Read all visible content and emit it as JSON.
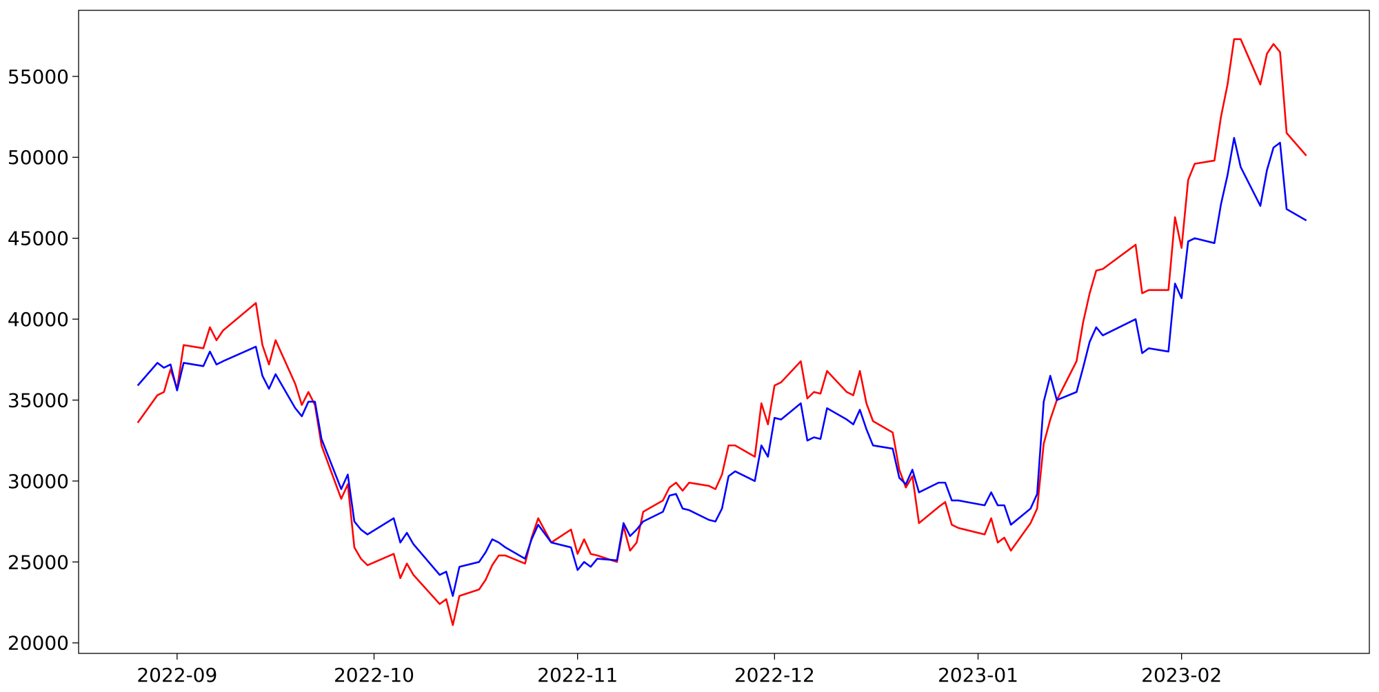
{
  "chart_data": {
    "type": "line",
    "x": [
      19230,
      19233,
      19234,
      19235,
      19236,
      19237,
      19240,
      19241,
      19242,
      19243,
      19248,
      19249,
      19250,
      19251,
      19254,
      19255,
      19256,
      19257,
      19258,
      19261,
      19262,
      19263,
      19264,
      19265,
      19269,
      19270,
      19271,
      19272,
      19276,
      19277,
      19278,
      19279,
      19282,
      19283,
      19284,
      19285,
      19286,
      19289,
      19290,
      19291,
      19293,
      19296,
      19297,
      19298,
      19299,
      19300,
      19303,
      19304,
      19305,
      19306,
      19307,
      19310,
      19311,
      19312,
      19313,
      19314,
      19317,
      19318,
      19319,
      19320,
      19321,
      19324,
      19325,
      19326,
      19327,
      19328,
      19331,
      19332,
      19333,
      19334,
      19335,
      19338,
      19339,
      19340,
      19341,
      19342,
      19345,
      19346,
      19347,
      19348,
      19349,
      19352,
      19353,
      19354,
      19355,
      19359,
      19360,
      19361,
      19362,
      19363,
      19366,
      19367,
      19368,
      19369,
      19370,
      19373,
      19374,
      19375,
      19376,
      19377,
      19382,
      19383,
      19384,
      19387,
      19388,
      19389,
      19390,
      19391,
      19394,
      19395,
      19396,
      19397,
      19398,
      19401,
      19402,
      19403,
      19404,
      19405,
      19408
    ],
    "series": [
      {
        "color": "#ff0000",
        "values": [
          33600,
          35300,
          35500,
          36900,
          35700,
          38400,
          38200,
          39500,
          38700,
          39300,
          41000,
          38400,
          37200,
          38700,
          36000,
          34700,
          35500,
          34700,
          32200,
          28900,
          29800,
          25900,
          25200,
          24800,
          25500,
          24000,
          24900,
          24200,
          22400,
          22700,
          21100,
          22900,
          23300,
          23900,
          24800,
          25400,
          25400,
          24900,
          26500,
          27700,
          26200,
          27000,
          25500,
          26400,
          25500,
          25400,
          25000,
          27200,
          25700,
          26200,
          28100,
          28800,
          29600,
          29900,
          29400,
          29900,
          29700,
          29500,
          30400,
          32200,
          32200,
          31500,
          34800,
          33500,
          35900,
          36100,
          37400,
          35100,
          35500,
          35400,
          36800,
          35500,
          35300,
          36800,
          34800,
          33700,
          33000,
          30700,
          29600,
          30300,
          27400,
          28400,
          28700,
          27300,
          27100,
          26700,
          27700,
          26200,
          26500,
          25700,
          27400,
          28300,
          32300,
          33800,
          35000,
          37400,
          39800,
          41600,
          43000,
          43100,
          44600,
          41600,
          41800,
          41800,
          46300,
          44400,
          48600,
          49600,
          49800,
          52500,
          54500,
          57300,
          57300,
          54500,
          56400,
          57000,
          56500,
          51500,
          50100
        ]
      },
      {
        "color": "#0000ff",
        "values": [
          35900,
          37300,
          37000,
          37200,
          35600,
          37300,
          37100,
          38000,
          37200,
          37400,
          38300,
          36500,
          35700,
          36600,
          34500,
          34000,
          34900,
          34900,
          32600,
          29500,
          30400,
          27500,
          27000,
          26700,
          27700,
          26200,
          26800,
          26100,
          24200,
          24400,
          22900,
          24700,
          25000,
          25600,
          26400,
          26200,
          25900,
          25200,
          26400,
          27300,
          26200,
          25900,
          24500,
          25000,
          24700,
          25200,
          25100,
          27400,
          26600,
          27000,
          27500,
          28100,
          29100,
          29200,
          28300,
          28200,
          27600,
          27500,
          28300,
          30300,
          30600,
          30000,
          32200,
          31500,
          33900,
          33800,
          34800,
          32500,
          32700,
          32600,
          34500,
          33800,
          33500,
          34400,
          33200,
          32200,
          32000,
          30200,
          29800,
          30700,
          29300,
          29900,
          29900,
          28800,
          28800,
          28500,
          29300,
          28500,
          28500,
          27300,
          28300,
          29200,
          34900,
          36500,
          35000,
          35500,
          37000,
          38600,
          39500,
          39000,
          40000,
          37900,
          38200,
          38000,
          42200,
          41300,
          44800,
          45000,
          44700,
          47100,
          48900,
          51200,
          49400,
          47000,
          49200,
          50600,
          50900,
          46800,
          46100
        ]
      }
    ],
    "xlim": [
      19221,
      19417.6
    ],
    "xticks": [
      {
        "value": 19236,
        "label": "2022-09"
      },
      {
        "value": 19266,
        "label": "2022-10"
      },
      {
        "value": 19297,
        "label": "2022-11"
      },
      {
        "value": 19327,
        "label": "2022-12"
      },
      {
        "value": 19358,
        "label": "2023-01"
      },
      {
        "value": 19389,
        "label": "2023-02"
      }
    ],
    "ylim": [
      19350,
      59080
    ],
    "yticks": [
      20000,
      25000,
      30000,
      35000,
      40000,
      45000,
      50000,
      55000
    ],
    "grid": false
  }
}
